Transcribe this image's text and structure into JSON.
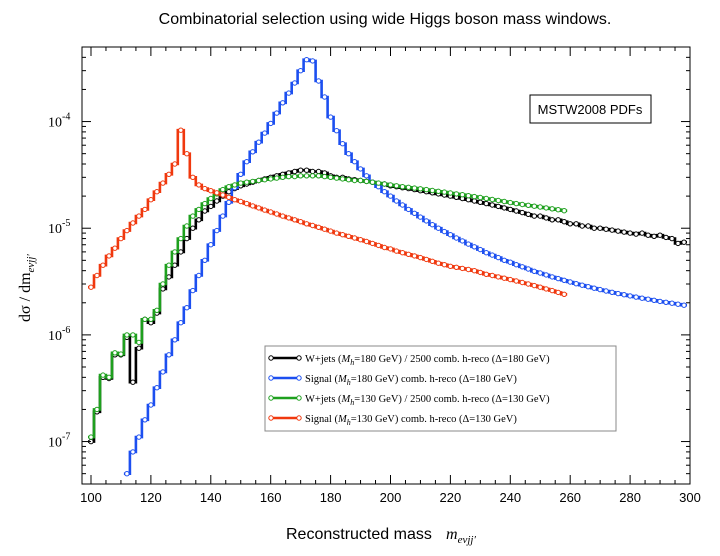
{
  "chart_data": {
    "type": "line",
    "title": "Combinatorial selection using wide Higgs boson mass windows.",
    "xlabel": "Reconstructed mass",
    "xlabel_math": "m",
    "xlabel_sub": "eνjj′",
    "ylabel": "dσ / dm",
    "ylabel_sub": "eνjj′",
    "xlim": [
      97,
      300
    ],
    "ylim": [
      4e-08,
      0.0005
    ],
    "yscale": "log",
    "x_ticks": [
      100,
      120,
      140,
      160,
      180,
      200,
      220,
      240,
      260,
      280,
      300
    ],
    "y_ticks": [
      {
        "mant": "10",
        "exp": "-7",
        "value": 1e-07
      },
      {
        "mant": "10",
        "exp": "-6",
        "value": 1e-06
      },
      {
        "mant": "10",
        "exp": "-5",
        "value": 1e-05
      },
      {
        "mant": "10",
        "exp": "-4",
        "value": 0.0001
      }
    ],
    "annotation": "MSTW2008 PDFs",
    "legend_position": "lower-right",
    "series": [
      {
        "name": "W+jets (M_h=180 GeV) / 2500  comb. h-reco (Δ=180 GeV)",
        "label_pre": "W+jets (",
        "label_sub": "h",
        "label_post": "=180 GeV) / 2500  comb. h-reco (Δ=180 GeV)",
        "color": "#000000",
        "x": [
          100,
          102,
          104,
          106,
          108,
          110,
          112,
          114,
          116,
          118,
          120,
          122,
          124,
          126,
          128,
          130,
          132,
          134,
          136,
          138,
          140,
          142,
          144,
          146,
          148,
          150,
          152,
          154,
          156,
          158,
          160,
          162,
          164,
          166,
          168,
          170,
          172,
          174,
          176,
          178,
          180,
          182,
          184,
          186,
          188,
          190,
          192,
          194,
          196,
          198,
          200,
          202,
          204,
          206,
          208,
          210,
          212,
          214,
          216,
          218,
          220,
          222,
          224,
          226,
          228,
          230,
          232,
          234,
          236,
          238,
          240,
          242,
          244,
          246,
          248,
          250,
          252,
          254,
          256,
          258,
          260,
          262,
          264,
          266,
          268,
          270,
          272,
          274,
          276,
          278,
          280,
          282,
          284,
          286,
          288,
          290,
          292,
          294,
          296,
          298
        ],
        "y": [
          1e-07,
          1.9e-07,
          4e-07,
          3.9e-07,
          6.5e-07,
          6.5e-07,
          9.5e-07,
          3.6e-07,
          7.5e-07,
          1.4e-06,
          1.3e-06,
          1.6e-06,
          2.7e-06,
          3.5e-06,
          4.5e-06,
          6e-06,
          8e-06,
          1e-05,
          1.2e-05,
          1.45e-05,
          1.6e-05,
          1.8e-05,
          2e-05,
          2.2e-05,
          2.35e-05,
          2.5e-05,
          2.6e-05,
          2.7e-05,
          2.8e-05,
          2.9e-05,
          3e-05,
          3.1e-05,
          3.2e-05,
          3.3e-05,
          3.4e-05,
          3.5e-05,
          3.5e-05,
          3.4e-05,
          3.4e-05,
          3.3e-05,
          3.1e-05,
          3e-05,
          3e-05,
          2.9e-05,
          2.85e-05,
          2.8e-05,
          2.75e-05,
          2.7e-05,
          2.6e-05,
          2.6e-05,
          2.5e-05,
          2.45e-05,
          2.4e-05,
          2.35e-05,
          2.3e-05,
          2.25e-05,
          2.2e-05,
          2.15e-05,
          2.1e-05,
          2.05e-05,
          2e-05,
          1.95e-05,
          1.9e-05,
          1.85e-05,
          1.8e-05,
          1.75e-05,
          1.7e-05,
          1.65e-05,
          1.6e-05,
          1.55e-05,
          1.5e-05,
          1.45e-05,
          1.4e-05,
          1.35e-05,
          1.3e-05,
          1.3e-05,
          1.25e-05,
          1.2e-05,
          1.2e-05,
          1.15e-05,
          1.1e-05,
          1.1e-05,
          1.05e-05,
          1.05e-05,
          1e-05,
          1e-05,
          9.8e-06,
          9.6e-06,
          9.4e-06,
          9.2e-06,
          9e-06,
          8.8e-06,
          9e-06,
          8.6e-06,
          8.4e-06,
          8.6e-06,
          8.2e-06,
          8e-06,
          7.2e-06,
          7.4e-06
        ]
      },
      {
        "name": "Signal (M_h=180 GeV)  comb. h-reco (Δ=180 GeV)",
        "label_pre": "Signal (",
        "label_sub": "h",
        "label_post": "=180 GeV)  comb. h-reco (Δ=180 GeV)",
        "color": "#1c4ff0",
        "x": [
          112,
          114,
          116,
          118,
          120,
          122,
          124,
          126,
          128,
          130,
          132,
          134,
          136,
          138,
          140,
          142,
          144,
          146,
          148,
          150,
          152,
          154,
          156,
          158,
          160,
          162,
          164,
          166,
          168,
          170,
          172,
          174,
          176,
          178,
          180,
          182,
          184,
          186,
          188,
          190,
          192,
          194,
          196,
          198,
          200,
          202,
          204,
          206,
          208,
          210,
          212,
          214,
          216,
          218,
          220,
          222,
          224,
          226,
          228,
          230,
          232,
          234,
          236,
          238,
          240,
          242,
          244,
          246,
          248,
          250,
          252,
          254,
          256,
          258,
          260,
          262,
          264,
          266,
          268,
          270,
          272,
          274,
          276,
          278,
          280,
          282,
          284,
          286,
          288,
          290,
          292,
          294,
          296,
          298
        ],
        "y": [
          5e-08,
          8e-08,
          1.1e-07,
          1.6e-07,
          2.2e-07,
          3.2e-07,
          4.5e-07,
          6.5e-07,
          9e-07,
          1.3e-06,
          1.8e-06,
          2.6e-06,
          3.6e-06,
          5e-06,
          7e-06,
          9.5e-06,
          1.3e-05,
          1.75e-05,
          2.4e-05,
          3.2e-05,
          4.2e-05,
          5.2e-05,
          6.4e-05,
          7.8e-05,
          9.6e-05,
          0.00012,
          0.00015,
          0.000185,
          0.00023,
          0.0003,
          0.00038,
          0.00037,
          0.00024,
          0.00017,
          0.00011,
          8.2e-05,
          6.2e-05,
          5e-05,
          4.2e-05,
          3.6e-05,
          3.1e-05,
          2.7e-05,
          2.45e-05,
          2.2e-05,
          2e-05,
          1.8e-05,
          1.65e-05,
          1.5e-05,
          1.38e-05,
          1.27e-05,
          1.17e-05,
          1.08e-05,
          1e-05,
          9.3e-06,
          8.7e-06,
          8.1e-06,
          7.6e-06,
          7.1e-06,
          6.7e-06,
          6.3e-06,
          5.9e-06,
          5.6e-06,
          5.3e-06,
          5e-06,
          4.8e-06,
          4.55e-06,
          4.35e-06,
          4.15e-06,
          3.95e-06,
          3.8e-06,
          3.65e-06,
          3.5e-06,
          3.37e-06,
          3.25e-06,
          3.13e-06,
          3.02e-06,
          2.92e-06,
          2.83e-06,
          2.74e-06,
          2.66e-06,
          2.58e-06,
          2.51e-06,
          2.44e-06,
          2.38e-06,
          2.32e-06,
          2.26e-06,
          2.21e-06,
          2.16e-06,
          2.11e-06,
          2.06e-06,
          2.02e-06,
          1.98e-06,
          1.94e-06,
          1.9e-06
        ]
      },
      {
        "name": "W+jets (M_h=130 GeV) / 2500  comb. h-reco (Δ=130 GeV)",
        "label_pre": "W+jets (",
        "label_sub": "h",
        "label_post": "=130 GeV) / 2500  comb. h-reco (Δ=130 GeV)",
        "color": "#1ea01e",
        "x": [
          100,
          102,
          104,
          106,
          108,
          110,
          112,
          114,
          116,
          118,
          120,
          122,
          124,
          126,
          128,
          130,
          132,
          134,
          136,
          138,
          140,
          142,
          144,
          146,
          148,
          150,
          152,
          154,
          156,
          158,
          160,
          162,
          164,
          166,
          168,
          170,
          172,
          174,
          176,
          178,
          180,
          182,
          184,
          186,
          188,
          190,
          192,
          194,
          196,
          198,
          200,
          202,
          204,
          206,
          208,
          210,
          212,
          214,
          216,
          218,
          220,
          222,
          224,
          226,
          228,
          230,
          232,
          234,
          236,
          238,
          240,
          242,
          244,
          246,
          248,
          250,
          252,
          254,
          256,
          258
        ],
        "y": [
          1.1e-07,
          2e-07,
          4.2e-07,
          4e-07,
          6.8e-07,
          6.6e-07,
          1e-06,
          1e-06,
          8.5e-07,
          1.4e-06,
          1.4e-06,
          1.7e-06,
          3e-06,
          4.5e-06,
          6e-06,
          8e-06,
          1.05e-05,
          1.3e-05,
          1.5e-05,
          1.7e-05,
          1.9e-05,
          2.1e-05,
          2.3e-05,
          2.45e-05,
          2.55e-05,
          2.65e-05,
          2.7e-05,
          2.75e-05,
          2.8e-05,
          2.85e-05,
          2.9e-05,
          2.95e-05,
          3e-05,
          3.05e-05,
          3.05e-05,
          3.1e-05,
          3.1e-05,
          3.1e-05,
          3.1e-05,
          3.05e-05,
          3e-05,
          2.95e-05,
          2.9e-05,
          2.85e-05,
          2.8e-05,
          2.8e-05,
          2.75e-05,
          2.7e-05,
          2.65e-05,
          2.6e-05,
          2.55e-05,
          2.5e-05,
          2.45e-05,
          2.42e-05,
          2.38e-05,
          2.34e-05,
          2.3e-05,
          2.26e-05,
          2.22e-05,
          2.18e-05,
          2.14e-05,
          2.1e-05,
          2.06e-05,
          2.02e-05,
          1.98e-05,
          1.94e-05,
          1.9e-05,
          1.86e-05,
          1.82e-05,
          1.78e-05,
          1.74e-05,
          1.7e-05,
          1.67e-05,
          1.64e-05,
          1.61e-05,
          1.58e-05,
          1.55e-05,
          1.52e-05,
          1.49e-05,
          1.46e-05
        ]
      },
      {
        "name": "Signal (M_h=130 GeV)  comb. h-reco (Δ=130 GeV)",
        "label_pre": "Signal (",
        "label_sub": "h",
        "label_post": "=130 GeV)  comb. h-reco (Δ=130 GeV)",
        "color": "#f0380e",
        "x": [
          100,
          102,
          104,
          106,
          108,
          110,
          112,
          114,
          116,
          118,
          120,
          122,
          124,
          126,
          128,
          130,
          132,
          134,
          136,
          138,
          140,
          142,
          144,
          146,
          148,
          150,
          152,
          154,
          156,
          158,
          160,
          162,
          164,
          166,
          168,
          170,
          172,
          174,
          176,
          178,
          180,
          182,
          184,
          186,
          188,
          190,
          192,
          194,
          196,
          198,
          200,
          202,
          204,
          206,
          208,
          210,
          212,
          214,
          216,
          218,
          220,
          222,
          224,
          226,
          228,
          230,
          232,
          234,
          236,
          238,
          240,
          242,
          244,
          246,
          248,
          250,
          252,
          254,
          256,
          258
        ],
        "y": [
          2.8e-06,
          3.6e-06,
          4.5e-06,
          5.5e-06,
          6.5e-06,
          8e-06,
          9.5e-06,
          1.12e-05,
          1.3e-05,
          1.5e-05,
          1.85e-05,
          2.2e-05,
          2.65e-05,
          3.2e-05,
          4e-05,
          8.3e-05,
          5e-05,
          3e-05,
          2.55e-05,
          2.35e-05,
          2.25e-05,
          2.15e-05,
          2.05e-05,
          1.95e-05,
          1.85e-05,
          1.78e-05,
          1.7e-05,
          1.62e-05,
          1.55e-05,
          1.48e-05,
          1.42e-05,
          1.36e-05,
          1.3e-05,
          1.25e-05,
          1.2e-05,
          1.15e-05,
          1.1e-05,
          1.06e-05,
          1.02e-05,
          9.8e-06,
          9.4e-06,
          9e-06,
          8.7e-06,
          8.4e-06,
          8.1e-06,
          7.8e-06,
          7.5e-06,
          7.2e-06,
          6.9e-06,
          6.6e-06,
          6.4e-06,
          6.1e-06,
          5.9e-06,
          5.7e-06,
          5.5e-06,
          5.3e-06,
          5.1e-06,
          4.9e-06,
          4.7e-06,
          4.55e-06,
          4.4e-06,
          4.3e-06,
          4.2e-06,
          4.1e-06,
          4e-06,
          3.85e-06,
          3.7e-06,
          3.6e-06,
          3.5e-06,
          3.4e-06,
          3.3e-06,
          3.2e-06,
          3.1e-06,
          3e-06,
          2.9e-06,
          2.8e-06,
          2.7e-06,
          2.6e-06,
          2.5e-06,
          2.4e-06
        ]
      }
    ]
  }
}
